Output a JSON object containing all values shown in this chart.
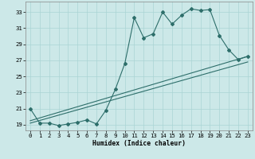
{
  "xlabel": "Humidex (Indice chaleur)",
  "bg_color": "#cce8e8",
  "grid_color": "#aad4d4",
  "line_color": "#2d6e6a",
  "xlim": [
    -0.5,
    23.5
  ],
  "ylim": [
    18.3,
    34.3
  ],
  "xticks": [
    0,
    1,
    2,
    3,
    4,
    5,
    6,
    7,
    8,
    9,
    10,
    11,
    12,
    13,
    14,
    15,
    16,
    17,
    18,
    19,
    20,
    21,
    22,
    23
  ],
  "yticks": [
    19,
    21,
    23,
    25,
    27,
    29,
    31,
    33
  ],
  "series1_x": [
    0,
    1,
    2,
    3,
    4,
    5,
    6,
    7,
    8,
    9,
    10,
    11,
    12,
    13,
    14,
    15,
    16,
    17,
    18,
    19,
    20,
    21,
    22,
    23
  ],
  "series1_y": [
    21.0,
    19.2,
    19.2,
    18.9,
    19.1,
    19.3,
    19.6,
    19.1,
    20.8,
    23.4,
    26.6,
    32.3,
    29.8,
    30.3,
    33.0,
    31.5,
    32.6,
    33.4,
    33.2,
    33.3,
    30.1,
    28.3,
    27.1,
    27.5
  ],
  "line2_pts": [
    [
      0,
      19.5
    ],
    [
      23,
      27.5
    ]
  ],
  "line3_pts": [
    [
      0,
      19.2
    ],
    [
      23,
      26.8
    ]
  ]
}
